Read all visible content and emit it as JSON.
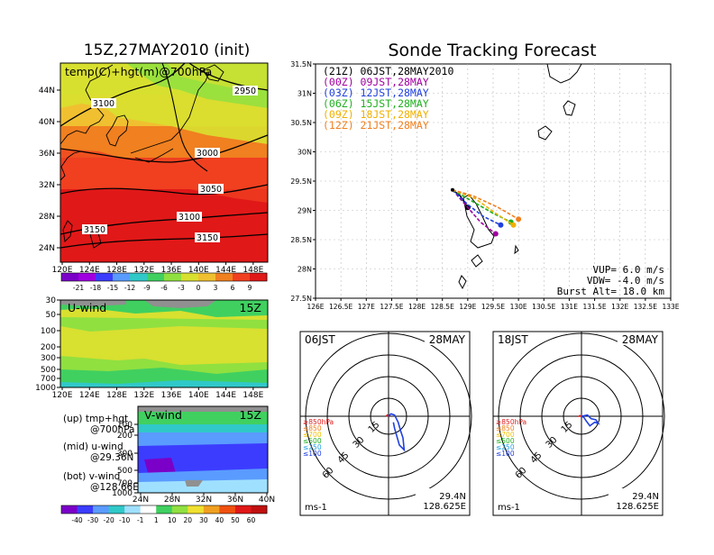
{
  "left": {
    "title": "15Z,27MAY2010 (init)",
    "map_label": "temp(C)+hgt(m)@700hPa",
    "map_lat_ticks": [
      "44N",
      "40N",
      "36N",
      "32N",
      "28N",
      "24N"
    ],
    "lon_ticks": [
      "120E",
      "124E",
      "128E",
      "132E",
      "136E",
      "140E",
      "144E",
      "148E"
    ],
    "contour_labels": [
      "3100",
      "2950",
      "3000",
      "3050",
      "3100",
      "3150",
      "3150"
    ],
    "temp_bar_ticks": [
      "-21",
      "-18",
      "-15",
      "-12",
      "-9",
      "-6",
      "-3",
      "0",
      "3",
      "6",
      "9"
    ],
    "temp_colors": [
      "#7b00c8",
      "#a000e0",
      "#3c3cff",
      "#5a9bff",
      "#30c8c8",
      "#40d060",
      "#90e040",
      "#d8e030",
      "#f0c030",
      "#f08020",
      "#f04020",
      "#e01818"
    ],
    "uwind": {
      "label": "U-wind",
      "time": "15Z",
      "y_ticks": [
        "30",
        "50",
        "100",
        "200",
        "300",
        "500",
        "700",
        "1000"
      ]
    },
    "vwind": {
      "label": "V-wind",
      "time": "15Z",
      "y_ticks": [
        "100",
        "200",
        "300",
        "500",
        "700",
        "1000"
      ],
      "x_ticks": [
        "24N",
        "28N",
        "32N",
        "36N",
        "40N"
      ]
    },
    "legend_up": "(up) tmp+hgt",
    "legend_up2": "@700hPa",
    "legend_mid": "(mid) u-wind",
    "legend_mid2": "@29.36N",
    "legend_bot": "(bot) v-wind",
    "legend_bot2": "@128.66E",
    "wind_bar_ticks": [
      "-40",
      "-30",
      "-20",
      "-10",
      "-1",
      "1",
      "10",
      "20",
      "30",
      "40",
      "50",
      "60"
    ],
    "wind_colors": [
      "#7b00c8",
      "#3c3cff",
      "#5a9bff",
      "#30c8c8",
      "#a0e0ff",
      "#ffffff",
      "#40d060",
      "#90e040",
      "#f0e030",
      "#f0a020",
      "#f05010",
      "#e01818"
    ]
  },
  "right": {
    "title": "Sonde Tracking Forecast",
    "lat_ticks": [
      "31.5N",
      "31N",
      "30.5N",
      "30N",
      "29.5N",
      "29N",
      "28.5N",
      "28N",
      "27.5N"
    ],
    "lon_ticks": [
      "126E",
      "126.5E",
      "127E",
      "127.5E",
      "128E",
      "128.5E",
      "129E",
      "129.5E",
      "130E",
      "130.5E",
      "131E",
      "131.5E",
      "132E",
      "132.5E",
      "133E"
    ],
    "header_line": "(21Z)  06JST,28MAY2010",
    "tracks": [
      {
        "label": "(00Z)  09JST,28MAY",
        "color": "#a000a0"
      },
      {
        "label": "(03Z)  12JST,28MAY",
        "color": "#2040e0"
      },
      {
        "label": "(06Z)  15JST,28MAY",
        "color": "#20b020"
      },
      {
        "label": "(09Z)  18JST,28MAY",
        "color": "#f0b000"
      },
      {
        "label": "(12Z)  21JST,28MAY",
        "color": "#f08020"
      }
    ],
    "vup": "VUP=  6.0  m/s",
    "vdw": "VDW= -4.0  m/s",
    "burst": "Burst Alt=  18.0  km"
  },
  "hodo1": {
    "time": "06JST",
    "date": "28MAY",
    "ring_labels": [
      "15",
      "30",
      "45",
      "60"
    ],
    "unit": "ms-1",
    "lat": "29.4N",
    "lon": "128.625E",
    "levels": [
      {
        "label": "≥850hPa",
        "color": "#e02020"
      },
      {
        "label": "≤850",
        "color": "#f08020"
      },
      {
        "label": "≤700",
        "color": "#f0c000"
      },
      {
        "label": "≤500",
        "color": "#20b020"
      },
      {
        "label": "≤250",
        "color": "#20a0e0"
      },
      {
        "label": "≤100",
        "color": "#2040e0"
      }
    ]
  },
  "hodo2": {
    "time": "18JST",
    "date": "28MAY",
    "ring_labels": [
      "15",
      "30",
      "45",
      "60"
    ],
    "unit": "ms-1",
    "lat": "29.4N",
    "lon": "128.625E",
    "levels": [
      {
        "label": "≥850hPa",
        "color": "#e02020"
      },
      {
        "label": "≤850",
        "color": "#f08020"
      },
      {
        "label": "≤700",
        "color": "#f0c000"
      },
      {
        "label": "≤500",
        "color": "#20b020"
      },
      {
        "label": "≤250",
        "color": "#20a0e0"
      },
      {
        "label": "≤100",
        "color": "#2040e0"
      }
    ]
  },
  "chart_data": [
    {
      "type": "line",
      "title": "Sonde Tracking Forecast",
      "xlabel": "",
      "ylabel": "",
      "xlim": [
        126,
        133
      ],
      "ylim": [
        27.5,
        31.5
      ],
      "x_unit": "deg E",
      "y_unit": "deg N",
      "series": [
        {
          "name": "(21Z) 06JST,28MAY2010",
          "color": "#000000",
          "x": [
            128.7,
            128.85,
            129.0
          ],
          "y": [
            29.35,
            29.25,
            29.05
          ]
        },
        {
          "name": "(00Z) 09JST,28MAY",
          "color": "#a000a0",
          "x": [
            128.7,
            128.95,
            129.25,
            129.55
          ],
          "y": [
            29.35,
            29.1,
            28.8,
            28.6
          ]
        },
        {
          "name": "(03Z) 12JST,28MAY",
          "color": "#2040e0",
          "x": [
            128.7,
            129.0,
            129.3,
            129.65
          ],
          "y": [
            29.35,
            29.1,
            28.9,
            28.75
          ]
        },
        {
          "name": "(06Z) 15JST,28MAY",
          "color": "#20b020",
          "x": [
            128.7,
            129.1,
            129.5,
            129.85
          ],
          "y": [
            29.35,
            29.15,
            28.95,
            28.8
          ]
        },
        {
          "name": "(09Z) 18JST,28MAY",
          "color": "#f0b000",
          "x": [
            128.7,
            129.15,
            129.55,
            129.9
          ],
          "y": [
            29.35,
            29.2,
            28.95,
            28.75
          ]
        },
        {
          "name": "(12Z) 21JST,28MAY",
          "color": "#f08020",
          "x": [
            128.7,
            129.1,
            129.6,
            130.0
          ],
          "y": [
            29.35,
            29.25,
            29.05,
            28.85
          ]
        }
      ]
    },
    {
      "type": "line",
      "title": "06JST 28MAY",
      "x_unit": "ms-1",
      "y_unit": "ms-1",
      "series": [
        {
          "name": "≥850hPa",
          "color": "#e02020",
          "x": [
            0,
            -1,
            -2
          ],
          "y": [
            0,
            1,
            0
          ]
        },
        {
          "name": "≤100",
          "color": "#2040e0",
          "x": [
            0,
            2,
            5,
            8,
            10,
            12,
            13,
            9,
            5,
            4
          ],
          "y": [
            0,
            2,
            1,
            -5,
            -12,
            -18,
            -28,
            -24,
            -10,
            -5
          ]
        }
      ]
    },
    {
      "type": "line",
      "title": "18JST 28MAY",
      "x_unit": "ms-1",
      "y_unit": "ms-1",
      "series": [
        {
          "name": "≥850hPa",
          "color": "#e02020",
          "x": [
            0,
            -2,
            -1
          ],
          "y": [
            0,
            0,
            1
          ]
        },
        {
          "name": "≤100",
          "color": "#2040e0",
          "x": [
            0,
            5,
            8,
            12,
            14,
            11,
            7,
            4,
            2,
            0
          ],
          "y": [
            0,
            1,
            -2,
            -3,
            -6,
            -5,
            -8,
            -4,
            -1,
            0
          ]
        }
      ]
    }
  ]
}
